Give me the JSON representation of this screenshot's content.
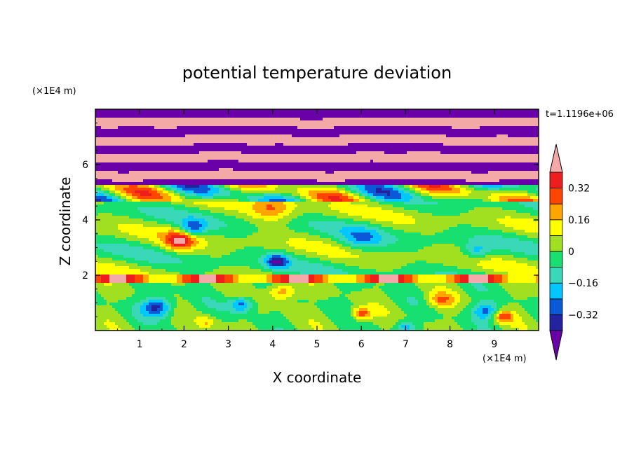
{
  "chart_data": {
    "type": "heatmap",
    "title": "potential temperature deviation",
    "xlabel": "X coordinate",
    "ylabel": "Z coordinate",
    "x_unit": "(×1E4 m)",
    "y_unit": "(×1E4 m)",
    "time_label": "t=1.1196e+06",
    "xlim": [
      0,
      10
    ],
    "ylim": [
      0,
      8
    ],
    "x_ticks": [
      1,
      2,
      3,
      4,
      5,
      6,
      7,
      8,
      9
    ],
    "y_ticks": [
      2,
      4,
      6
    ],
    "colorbar": {
      "extend": "both",
      "tick_labels": [
        "0.32",
        "0.16",
        "0",
        "−0.16",
        "−0.32"
      ],
      "tick_values": [
        0.32,
        0.16,
        0,
        -0.16,
        -0.32
      ],
      "levels": [
        -0.4,
        -0.32,
        -0.24,
        -0.16,
        -0.08,
        0,
        0.08,
        0.16,
        0.24,
        0.32,
        0.4
      ],
      "colors": [
        "#6a00a8",
        "#2323a0",
        "#0a5ad8",
        "#00c8ff",
        "#38d8b8",
        "#18e070",
        "#a0e020",
        "#ffff00",
        "#ffa500",
        "#ff4500",
        "#ee1e1e",
        "#f4a8a8"
      ]
    }
  }
}
